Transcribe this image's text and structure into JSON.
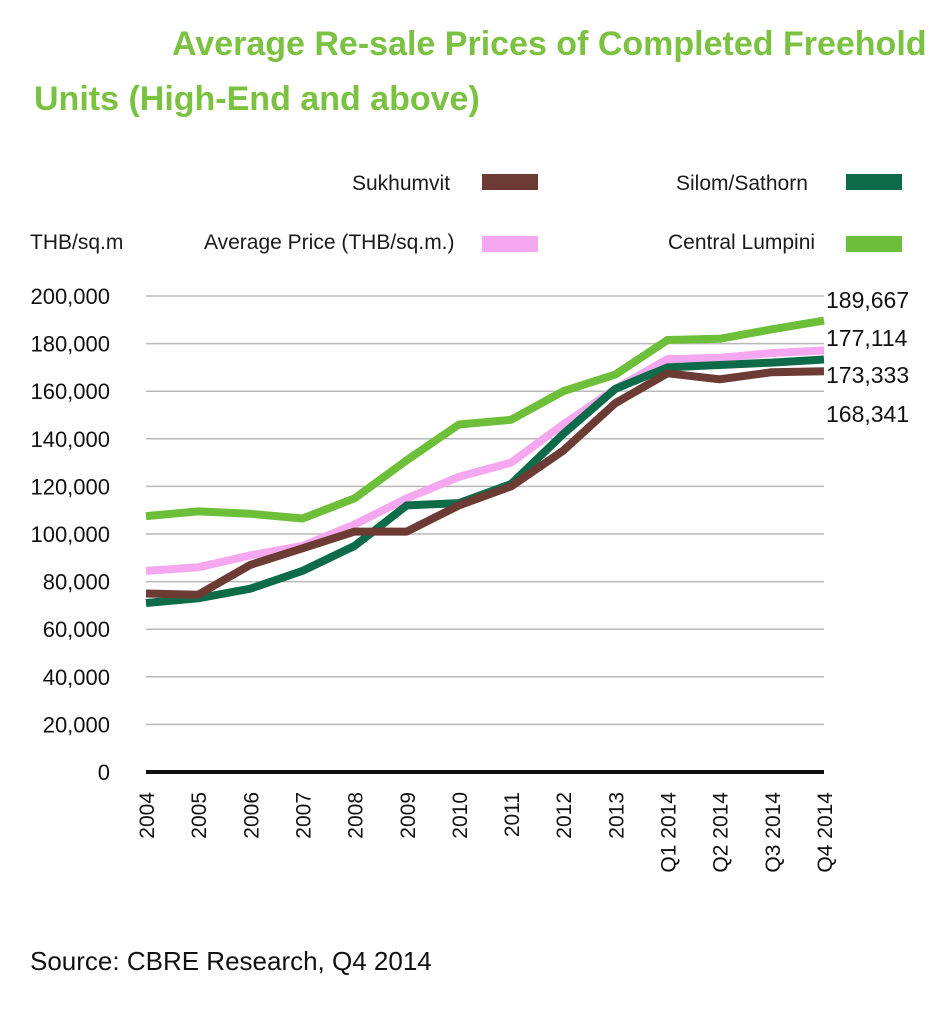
{
  "chart_data": {
    "type": "line",
    "title_line1": "Average Re-sale Prices of Completed Freehold",
    "title_line2": "Units (High-End and above)",
    "ylabel": "THB/sq.m",
    "ylim": [
      0,
      200000
    ],
    "yticks": [
      "0",
      "20,000",
      "40,000",
      "60,000",
      "80,000",
      "100,000",
      "120,000",
      "140,000",
      "160,000",
      "180,000",
      "200,000"
    ],
    "categories": [
      "2004",
      "2005",
      "2006",
      "2007",
      "2008",
      "2009",
      "2010",
      "2011",
      "2012",
      "2013",
      "Q1 2014",
      "Q2 2014",
      "Q3 2014",
      "Q4 2014"
    ],
    "series": [
      {
        "name": "Central Lumpini",
        "color": "#6dbf3a",
        "values": [
          107500,
          109500,
          108500,
          106500,
          115000,
          131000,
          146000,
          148000,
          160000,
          167000,
          181500,
          182000,
          186000,
          189667
        ]
      },
      {
        "name": "Average Price (THB/sq.m.)",
        "color": "#f5a8f0",
        "values": [
          84500,
          86000,
          91000,
          95000,
          104000,
          115000,
          124000,
          130000,
          146000,
          161000,
          173500,
          174000,
          176000,
          177114
        ]
      },
      {
        "name": "Silom/Sathorn",
        "color": "#0e6b4a",
        "values": [
          71000,
          73000,
          77000,
          84500,
          95000,
          112000,
          113000,
          121000,
          142000,
          161000,
          170000,
          171000,
          172000,
          173333
        ]
      },
      {
        "name": "Sukhumvit",
        "color": "#6b3b34",
        "values": [
          75000,
          74500,
          87000,
          94000,
          101000,
          101000,
          112000,
          120000,
          135000,
          155000,
          167500,
          165000,
          168000,
          168341
        ]
      }
    ],
    "end_labels": [
      "189,667",
      "177,114",
      "173,333",
      "168,341"
    ],
    "legend": {
      "sukhumvit": "Sukhumvit",
      "silom": "Silom/Sathorn",
      "average": "Average Price (THB/sq.m.)",
      "central": "Central Lumpini"
    },
    "source": "Source: CBRE Research, Q4 2014"
  },
  "colors": {
    "title": "#7cc242",
    "grid": "#b8b8b8",
    "axis": "#111111"
  }
}
